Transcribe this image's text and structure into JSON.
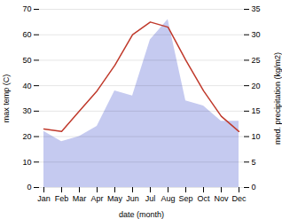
{
  "chart_data": {
    "type": "line",
    "categories": [
      "Jan",
      "Feb",
      "Mar",
      "Apr",
      "May",
      "Jun",
      "Jul",
      "Aug",
      "Sep",
      "Oct",
      "Nov",
      "Dec"
    ],
    "xlabel": "date (month)",
    "ylabel": "max temp (C)",
    "y2label": "med. precipitation (kg/m2)",
    "series": [
      {
        "type": "area",
        "color": "#c5caf0",
        "axis": "y2",
        "values": [
          11,
          9,
          10,
          12,
          19,
          18,
          29,
          33,
          17,
          16,
          13,
          13
        ]
      },
      {
        "type": "line",
        "color": "#c0392b",
        "values": [
          23,
          22,
          30,
          38,
          48,
          60,
          65,
          63,
          50,
          38,
          28,
          22
        ]
      }
    ],
    "ylim": [
      0,
      70
    ],
    "yticks": [
      0,
      10,
      20,
      30,
      40,
      50,
      60,
      70
    ],
    "y2lim": [
      0,
      35
    ],
    "y2ticks": [
      0,
      5,
      10,
      15,
      20,
      25,
      30,
      35
    ],
    "grid": true
  }
}
